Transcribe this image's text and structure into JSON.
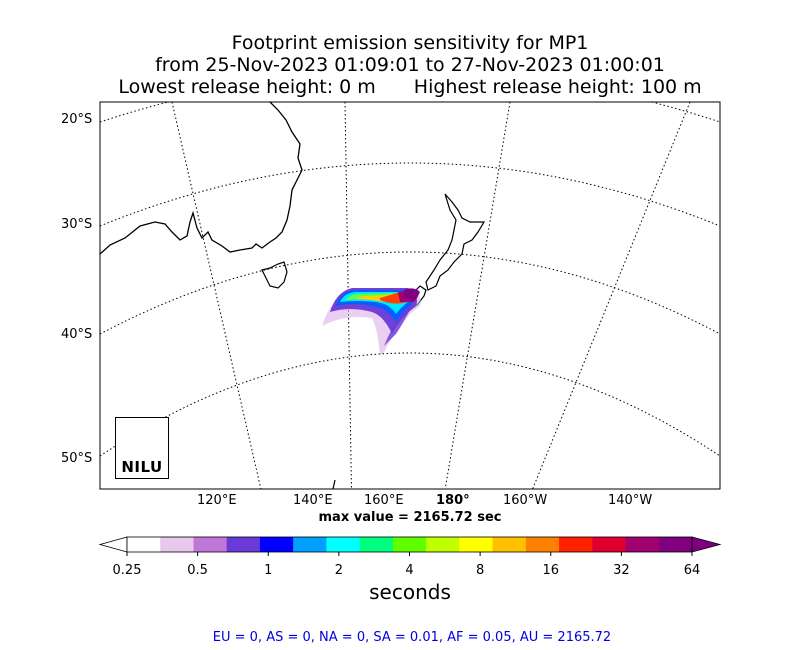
{
  "title": {
    "line1": "Footprint emission sensitivity for MP1",
    "line2": "from 25-Nov-2023 01:09:01 to 27-Nov-2023 01:00:01",
    "line3a": "Lowest release height: 0 m",
    "line3b": "Highest release height: 100 m"
  },
  "map": {
    "lat_labels": [
      "20°S",
      "30°S",
      "40°S",
      "50°S"
    ],
    "lon_labels": [
      "120°E",
      "140°E",
      "160°E",
      "180°",
      "160°W",
      "140°W"
    ],
    "max_value": "max value = 2165.72 sec",
    "logo_text": "NILU"
  },
  "colorbar": {
    "ticks": [
      "0.25",
      "0.5",
      "1",
      "2",
      "4",
      "8",
      "16",
      "32",
      "64"
    ],
    "title": "seconds",
    "colors": [
      "#ffffff",
      "#e8c8ec",
      "#c078d8",
      "#6a3ad8",
      "#0000ff",
      "#00a0ff",
      "#00ffff",
      "#00ff80",
      "#60ff00",
      "#c0ff00",
      "#ffff00",
      "#ffc000",
      "#ff8000",
      "#ff2000",
      "#e00030",
      "#a00070",
      "#800080"
    ]
  },
  "regions": "EU = 0,  AS = 0,  NA = 0,  SA = 0.01,  AF = 0.05,  AU = 2165.72"
}
